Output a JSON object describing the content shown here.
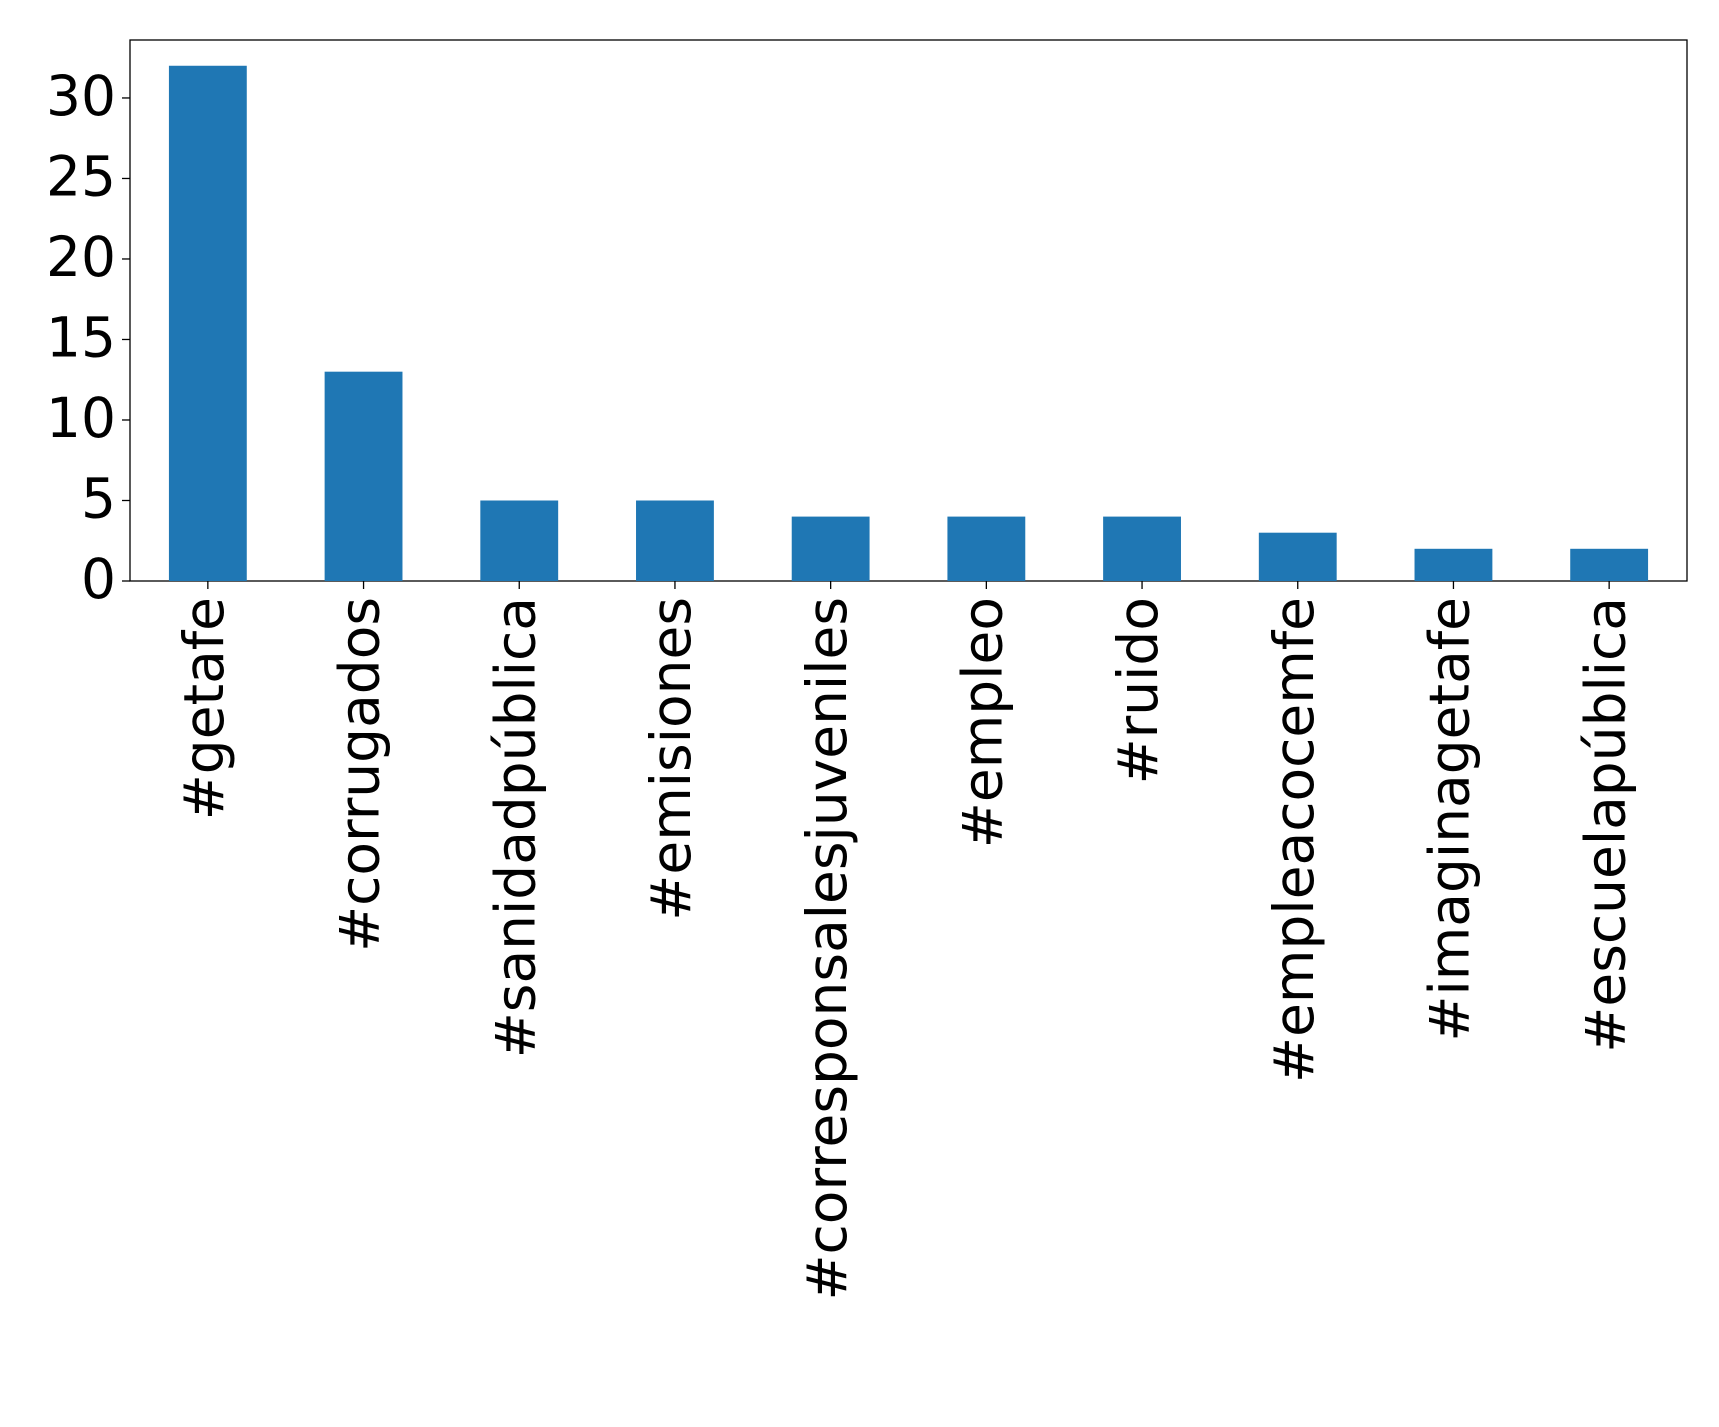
{
  "chart_data": {
    "type": "bar",
    "categories": [
      "#getafe",
      "#corrugados",
      "#sanidadpública",
      "#emisiones",
      "#corresponsalesjuveniles",
      "#empleo",
      "#ruido",
      "#empleacocemfe",
      "#imaginagetafe",
      "#escuelapública"
    ],
    "values": [
      32,
      13,
      5,
      5,
      4,
      4,
      4,
      3,
      2,
      2
    ],
    "color": "#1f77b4",
    "ylim": [
      0,
      33.6
    ],
    "yticks": [
      0,
      5,
      10,
      15,
      20,
      25,
      30
    ],
    "grid": false
  }
}
